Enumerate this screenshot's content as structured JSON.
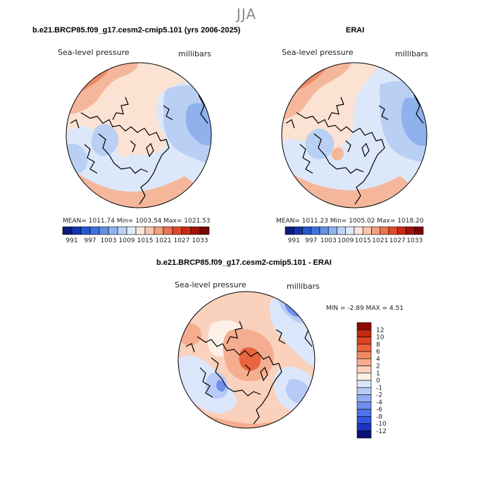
{
  "season": "JJA",
  "panels": [
    {
      "title": "b.e21.BRCP85.f09_g17.cesm2-cmip5.101 (yrs 2006-2025)",
      "left_label": "Sea-level pressure",
      "right_label": "millibars",
      "stats": "MEAN= 1011.74  Min= 1003.54  Max= 1021.53"
    },
    {
      "title": "ERAI",
      "left_label": "Sea-level pressure",
      "right_label": "millibars",
      "stats": "MEAN= 1011.23  Min= 1005.02  Max= 1018.20"
    },
    {
      "title": "b.e21.BRCP85.f09_g17.cesm2-cmip5.101 - ERAI",
      "left_label": "Sea-level pressure",
      "right_label": "millibars",
      "stats": "MIN =   -2.89  MAX =    4.51"
    }
  ],
  "abs_colorbar": {
    "colors": [
      "#0d1a7a",
      "#1432b0",
      "#2456d0",
      "#3f73dc",
      "#6390e4",
      "#8fb1ec",
      "#bcd2f3",
      "#dfeafa",
      "#fbe6da",
      "#f8c6ad",
      "#f4a07e",
      "#ec7350",
      "#e04a2a",
      "#c62a12",
      "#a31208",
      "#7a0503"
    ],
    "tick_labels": [
      "991",
      "997",
      "1003",
      "1009",
      "1015",
      "1021",
      "1027",
      "1033"
    ]
  },
  "diff_colorbar": {
    "colors": [
      "#0a1278",
      "#1d33c4",
      "#3456e0",
      "#4f72e8",
      "#6f8fec",
      "#93aef2",
      "#b8cbf6",
      "#dbe6fb",
      "#fdf0e6",
      "#f9d1bd",
      "#f5ad90",
      "#f08a64",
      "#e9653f",
      "#dd4424",
      "#c42a10",
      "#8c0a02"
    ],
    "tick_labels": [
      "12",
      "10",
      "8",
      "6",
      "4",
      "2",
      "1",
      "0",
      "-1",
      "-2",
      "-4",
      "-6",
      "-8",
      "-10",
      "-12"
    ]
  },
  "field_colors": {
    "high3": "#ec8a66",
    "high2": "#f5b79b",
    "high1": "#fbe2d2",
    "low1": "#dce8f9",
    "low2": "#b9cff4",
    "low3": "#8fb1ec",
    "diff_high3": "#e9653f",
    "diff_high2": "#f5ad90",
    "diff_high1": "#f9d1bd",
    "diff_neutral": "#fdf0e6",
    "diff_low1": "#dbe6fb",
    "diff_low2": "#b8cbf6",
    "diff_low3": "#6f8fec"
  }
}
